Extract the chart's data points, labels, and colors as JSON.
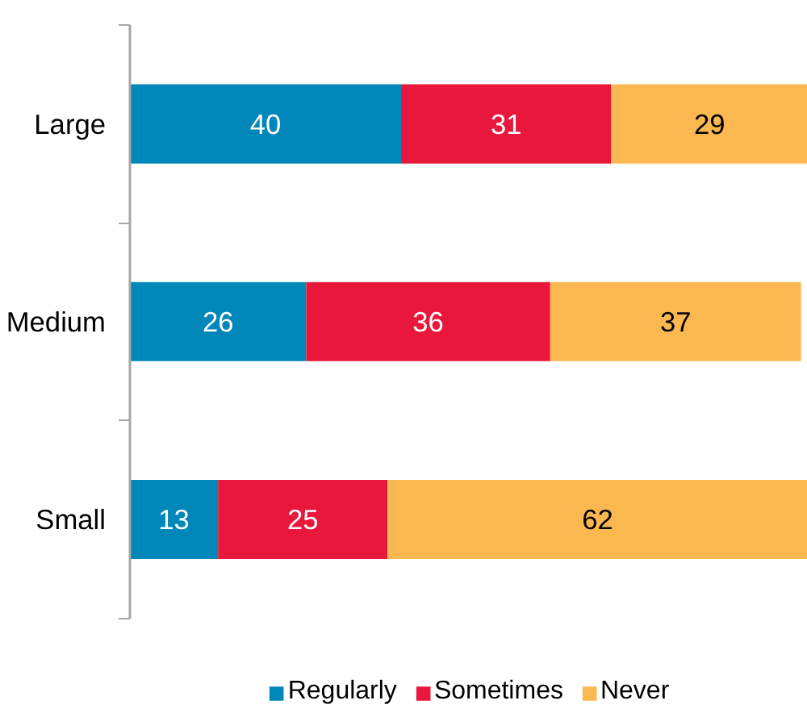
{
  "chart_data": {
    "type": "bar",
    "orientation": "horizontal",
    "stacked": true,
    "data_labels": true,
    "legend": "bottom",
    "grid": false,
    "tick_labels": "y",
    "categories": [
      "Large",
      "Medium",
      "Small"
    ],
    "xlim": [
      0,
      100
    ],
    "series": [
      {
        "name": "Regularly",
        "color": "#0087b9",
        "values": [
          40,
          26,
          13
        ]
      },
      {
        "name": "Sometimes",
        "color": "#e8173b",
        "values": [
          31,
          36,
          25
        ]
      },
      {
        "name": "Never",
        "color": "#fcb850",
        "values": [
          29,
          37,
          62
        ]
      }
    ]
  }
}
